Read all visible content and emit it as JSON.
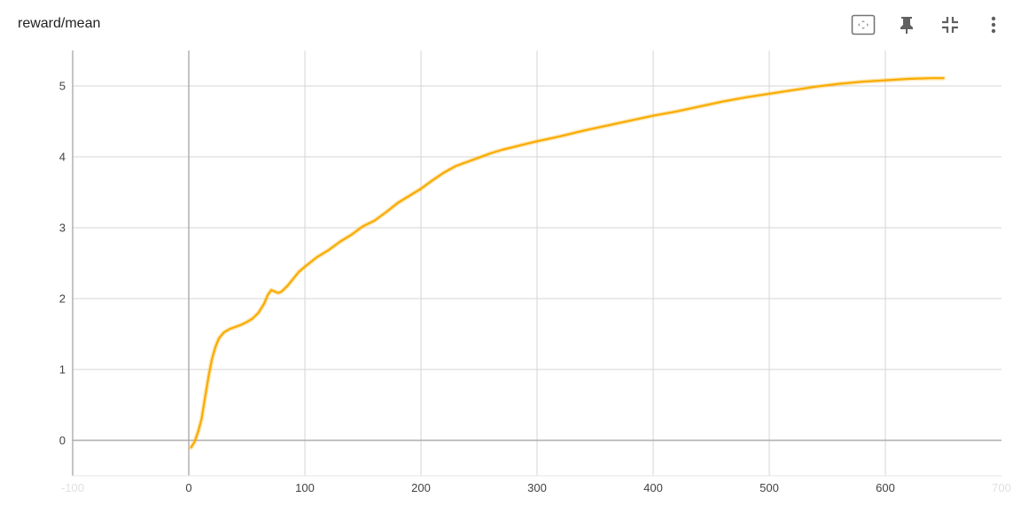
{
  "panel": {
    "title": "reward/mean"
  },
  "toolbar": {
    "buttons": [
      {
        "icon": "fit-domain-icon"
      },
      {
        "icon": "pin-icon"
      },
      {
        "icon": "collapse-icon"
      },
      {
        "icon": "more-vert-icon"
      }
    ]
  },
  "colors": {
    "series": "#f9ab00",
    "grid": "#d6d6d6",
    "zero_line": "#9e9e9e",
    "icon": "#616161"
  },
  "chart_data": {
    "type": "line",
    "title": "reward/mean",
    "xlabel": "",
    "ylabel": "",
    "xlim": [
      -100,
      700
    ],
    "ylim": [
      -0.5,
      5.5
    ],
    "x_ticks": [
      -100,
      0,
      100,
      200,
      300,
      400,
      500,
      600,
      700
    ],
    "x_tick_labels": [
      "-100",
      "0",
      "100",
      "200",
      "300",
      "400",
      "500",
      "600",
      "700"
    ],
    "y_ticks": [
      0,
      1,
      2,
      3,
      4,
      5
    ],
    "y_tick_labels": [
      "0",
      "1",
      "2",
      "3",
      "4",
      "5"
    ],
    "grid": true,
    "legend": "none",
    "series": [
      {
        "x": [
          2,
          5,
          8,
          11,
          14,
          17,
          20,
          23,
          26,
          30,
          35,
          40,
          45,
          50,
          55,
          60,
          65,
          68,
          71,
          74,
          77,
          80,
          85,
          90,
          95,
          100,
          110,
          120,
          130,
          140,
          150,
          160,
          170,
          180,
          190,
          200,
          210,
          220,
          230,
          240,
          250,
          260,
          270,
          280,
          290,
          300,
          320,
          340,
          360,
          380,
          400,
          420,
          440,
          460,
          480,
          500,
          520,
          540,
          560,
          580,
          600,
          620,
          640,
          650
        ],
        "y": [
          -0.1,
          -0.02,
          0.12,
          0.3,
          0.6,
          0.9,
          1.15,
          1.32,
          1.44,
          1.52,
          1.57,
          1.6,
          1.63,
          1.67,
          1.72,
          1.8,
          1.93,
          2.05,
          2.12,
          2.1,
          2.08,
          2.1,
          2.18,
          2.28,
          2.38,
          2.45,
          2.58,
          2.68,
          2.8,
          2.9,
          3.02,
          3.1,
          3.22,
          3.35,
          3.45,
          3.55,
          3.67,
          3.78,
          3.87,
          3.93,
          3.99,
          4.05,
          4.1,
          4.14,
          4.18,
          4.22,
          4.29,
          4.37,
          4.44,
          4.51,
          4.58,
          4.64,
          4.71,
          4.78,
          4.84,
          4.89,
          4.94,
          4.99,
          5.03,
          5.06,
          5.08,
          5.1,
          5.11,
          5.11
        ]
      }
    ]
  }
}
